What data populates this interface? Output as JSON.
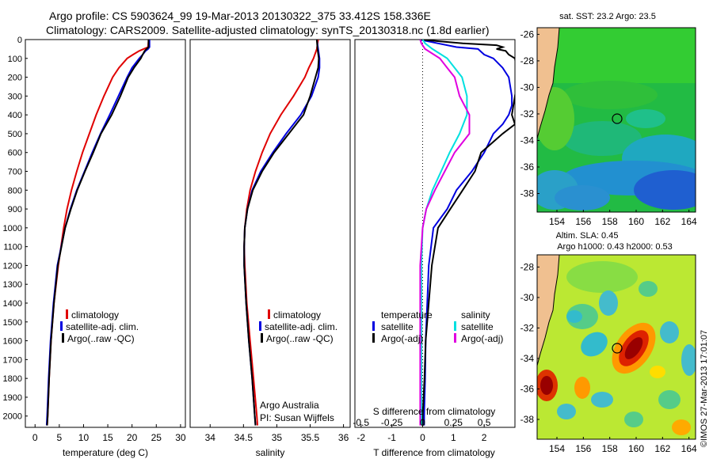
{
  "header": {
    "line1": "Argo profile: CS 5903624_99 19-Mar-2013 20130322_375 33.412S 158.336E",
    "line2": "Climatology: CARS2009. Satellite-adjusted climatology: synTS_20130318.nc (1.8d earlier)"
  },
  "colors": {
    "climatology": "#e00000",
    "satellite": "#0000e0",
    "argo": "#000000",
    "salinity_satellite": "#00e0e0",
    "salinity_argo": "#e000e0"
  },
  "chart_data": [
    {
      "type": "line",
      "xlabel": "temperature (deg C)",
      "ylabel": "",
      "xlim": [
        -2,
        31
      ],
      "ylim": [
        2060,
        0
      ],
      "x_ticks": [
        "0",
        "5",
        "10",
        "15",
        "20",
        "25",
        "30"
      ],
      "y_ticks": [
        "0",
        "100",
        "200",
        "300",
        "400",
        "500",
        "600",
        "700",
        "800",
        "900",
        "1000",
        "1100",
        "1200",
        "1300",
        "1400",
        "1500",
        "1600",
        "1700",
        "1800",
        "1900",
        "2000"
      ],
      "legend": [
        "climatology",
        "satellite-adj. clim.",
        "Argo(..raw -QC)"
      ],
      "legend_position": "lower-center",
      "series": [
        {
          "name": "climatology",
          "depth": [
            0,
            40,
            60,
            80,
            100,
            150,
            200,
            300,
            400,
            500,
            600,
            700,
            800,
            900,
            1000,
            1200,
            1400,
            1600,
            1800,
            2000,
            2050
          ],
          "values": [
            23.4,
            23.3,
            21.5,
            20.2,
            19.0,
            17.3,
            16.0,
            14.2,
            12.6,
            11.2,
            9.8,
            8.6,
            7.5,
            6.6,
            5.9,
            4.8,
            3.9,
            3.3,
            2.9,
            2.6,
            2.5
          ]
        },
        {
          "name": "satellite-adj. clim.",
          "depth": [
            0,
            40,
            50,
            60,
            80,
            100,
            150,
            200,
            300,
            400,
            500,
            600,
            700,
            800,
            900,
            1000,
            1200,
            1400,
            1600,
            1800,
            2000,
            2050
          ],
          "values": [
            23.6,
            23.6,
            23.3,
            22.8,
            22.2,
            21.5,
            20.0,
            19.0,
            17.2,
            15.4,
            13.5,
            11.8,
            10.2,
            8.6,
            7.3,
            6.2,
            4.6,
            3.8,
            3.2,
            2.8,
            2.5,
            2.4
          ]
        },
        {
          "name": "Argo(..raw -QC)",
          "depth": [
            0,
            40,
            50,
            60,
            80,
            100,
            150,
            200,
            300,
            400,
            500,
            600,
            700,
            800,
            900,
            1000,
            1200,
            1400,
            1600,
            1800,
            2000,
            2050
          ],
          "values": [
            23.4,
            23.4,
            23.0,
            22.6,
            22.2,
            21.8,
            20.4,
            19.2,
            17.6,
            15.8,
            13.6,
            12.0,
            10.3,
            8.7,
            7.4,
            6.2,
            4.7,
            3.9,
            3.3,
            2.9,
            2.6,
            2.5
          ]
        }
      ]
    },
    {
      "type": "line",
      "xlabel": "salinity",
      "xlim": [
        33.7,
        36.1
      ],
      "ylim": [
        2060,
        0
      ],
      "x_ticks": [
        "34",
        "34.5",
        "35",
        "35.5",
        "36"
      ],
      "legend": [
        "climatology",
        "satellite-adj. clim.",
        "Argo(..raw -QC)"
      ],
      "legend_position": "lower-center",
      "annotations": [
        "Argo Australia",
        "PI: Susan Wijffels"
      ],
      "series": [
        {
          "name": "climatology",
          "depth": [
            0,
            50,
            100,
            150,
            200,
            300,
            400,
            500,
            600,
            700,
            800,
            900,
            1000,
            1100,
            1200,
            1400,
            1600,
            1800,
            2000,
            2050
          ],
          "values": [
            35.62,
            35.6,
            35.55,
            35.48,
            35.42,
            35.25,
            35.06,
            34.9,
            34.78,
            34.68,
            34.6,
            34.55,
            34.52,
            34.51,
            34.52,
            34.55,
            34.6,
            34.65,
            34.7,
            34.71
          ]
        },
        {
          "name": "satellite-adj. clim.",
          "depth": [
            0,
            50,
            100,
            150,
            200,
            300,
            400,
            500,
            600,
            700,
            800,
            900,
            1000,
            1100,
            1200,
            1400,
            1600,
            1800,
            2000,
            2050
          ],
          "values": [
            35.6,
            35.62,
            35.64,
            35.64,
            35.62,
            35.52,
            35.36,
            35.14,
            34.94,
            34.76,
            34.63,
            34.56,
            34.52,
            34.51,
            34.51,
            34.54,
            34.58,
            34.63,
            34.67,
            34.68
          ]
        },
        {
          "name": "Argo(..raw -QC)",
          "depth": [
            0,
            50,
            100,
            150,
            200,
            300,
            400,
            500,
            600,
            700,
            800,
            900,
            1000,
            1100,
            1200,
            1400,
            1600,
            1800,
            2000,
            2050
          ],
          "values": [
            35.6,
            35.61,
            35.63,
            35.62,
            35.58,
            35.5,
            35.4,
            35.18,
            34.96,
            34.78,
            34.64,
            34.56,
            34.52,
            34.51,
            34.51,
            34.54,
            34.58,
            34.63,
            34.67,
            34.68
          ]
        }
      ]
    },
    {
      "type": "line",
      "xlabel": "T difference from climatology",
      "top_label": "S difference from climatology",
      "xlim": [
        -2.2,
        3.0
      ],
      "ylim": [
        2060,
        0
      ],
      "x_ticks_T": [
        "-2",
        "-1",
        "0",
        "1",
        "2"
      ],
      "x_ticks_S": [
        "-0.5",
        "-0.25",
        "0",
        "0.25",
        "0.5"
      ],
      "legend_temperature": {
        "title": "temperature",
        "items": [
          "satellite",
          "Argo(-adj)"
        ]
      },
      "legend_salinity": {
        "title": "salinity",
        "items": [
          "satellite",
          "Argo(-adj)"
        ]
      },
      "series": [
        {
          "name": "temperature satellite",
          "depth": [
            0,
            10,
            20,
            40,
            50,
            80,
            100,
            150,
            200,
            300,
            350,
            400,
            450,
            500,
            600,
            700,
            800,
            900,
            1000,
            1200,
            1400,
            1600,
            1800,
            2000,
            2050
          ],
          "values": [
            -0.1,
            0.2,
            0.5,
            1.1,
            1.8,
            2.0,
            2.3,
            2.6,
            2.8,
            2.9,
            2.9,
            2.8,
            2.6,
            2.3,
            2.0,
            1.6,
            1.1,
            0.8,
            0.35,
            0.2,
            0.15,
            0.1,
            0.08,
            0.05,
            0.05
          ]
        },
        {
          "name": "temperature Argo(-adj)",
          "depth": [
            0,
            10,
            20,
            30,
            40,
            50,
            60,
            80,
            100,
            200,
            300,
            400,
            450,
            500,
            600,
            700,
            800,
            900,
            1000,
            1200,
            1400,
            1600,
            1800,
            2000,
            2050
          ],
          "values": [
            -0.05,
            0.6,
            1.3,
            2.4,
            2.6,
            2.4,
            2.7,
            2.8,
            3.0,
            3.1,
            3.0,
            2.9,
            3.0,
            2.6,
            1.9,
            1.7,
            1.3,
            0.9,
            0.5,
            0.3,
            0.2,
            0.1,
            0.06,
            0.0,
            0.0
          ]
        },
        {
          "name": "salinity satellite",
          "depth": [
            0,
            20,
            50,
            100,
            150,
            200,
            300,
            400,
            500,
            600,
            700,
            800,
            900,
            1000,
            1200,
            1400,
            1600,
            1800,
            2000,
            2050
          ],
          "values": [
            0.0,
            0.02,
            0.08,
            0.2,
            0.26,
            0.32,
            0.36,
            0.36,
            0.3,
            0.22,
            0.15,
            0.08,
            0.03,
            0.0,
            -0.01,
            -0.01,
            -0.01,
            -0.01,
            -0.01,
            -0.01
          ]
        },
        {
          "name": "salinity Argo(-adj)",
          "depth": [
            0,
            20,
            50,
            100,
            150,
            200,
            300,
            400,
            500,
            600,
            700,
            800,
            900,
            1000,
            1200,
            1400,
            1600,
            1800,
            2000,
            2050
          ],
          "values": [
            -0.02,
            -0.01,
            0.02,
            0.14,
            0.2,
            0.26,
            0.3,
            0.38,
            0.38,
            0.26,
            0.18,
            0.1,
            0.03,
            0.0,
            -0.02,
            -0.02,
            -0.02,
            -0.02,
            -0.02,
            -0.02
          ]
        }
      ]
    },
    {
      "type": "heatmap",
      "title": "sat. SST: 23.2  Argo: 23.5",
      "x_ticks": [
        "154",
        "156",
        "158",
        "160",
        "162",
        "164"
      ],
      "y_ticks": [
        "-26",
        "-28",
        "-30",
        "-32",
        "-34",
        "-36",
        "-38"
      ],
      "marker": {
        "lon": 158.336,
        "lat": -33.412
      }
    },
    {
      "type": "heatmap",
      "title_line1": "Altim. SLA: 0.45",
      "title_line2": "Argo h1000: 0.43  h2000: 0.53",
      "x_ticks": [
        "154",
        "156",
        "158",
        "160",
        "162",
        "164"
      ],
      "y_ticks": [
        "-28",
        "-30",
        "-32",
        "-34",
        "-36",
        "-38"
      ],
      "marker": {
        "lon": 158.336,
        "lat": -33.412
      }
    }
  ],
  "side_text": "©IMOS 27-Mar-2013 17:01:07"
}
